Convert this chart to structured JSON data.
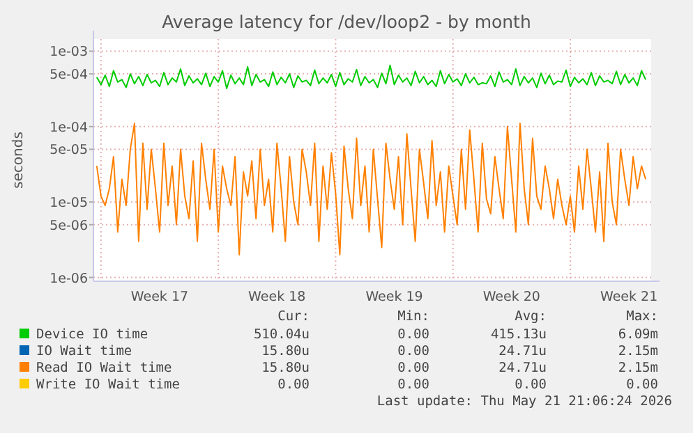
{
  "chart_data": {
    "type": "line",
    "title": "Average latency for /dev/loop2 - by month",
    "ylabel": "seconds",
    "log": true,
    "grid": true,
    "legend": "bottom",
    "marker": "none",
    "line_style": "solid",
    "categories": [
      null,
      null,
      null,
      null,
      null,
      null,
      null,
      null,
      null,
      null,
      null,
      null,
      null,
      null,
      null,
      "Week 17",
      null,
      null,
      null,
      null,
      null,
      null,
      null,
      null,
      null,
      null,
      null,
      null,
      null,
      null,
      null,
      null,
      null,
      null,
      null,
      null,
      null,
      null,
      null,
      null,
      null,
      null,
      null,
      "Week 18",
      null,
      null,
      null,
      null,
      null,
      null,
      null,
      null,
      null,
      null,
      null,
      null,
      null,
      null,
      null,
      null,
      null,
      null,
      null,
      null,
      null,
      null,
      null,
      null,
      null,
      null,
      null,
      "Week 19",
      null,
      null,
      null,
      null,
      null,
      null,
      null,
      null,
      null,
      null,
      null,
      null,
      null,
      null,
      null,
      null,
      null,
      null,
      null,
      null,
      null,
      null,
      null,
      null,
      null,
      null,
      null,
      "Week 20",
      null,
      null,
      null,
      null,
      null,
      null,
      null,
      null,
      null,
      null,
      null,
      null,
      null,
      null,
      null,
      null,
      null,
      null,
      null,
      null,
      null,
      null,
      null,
      null,
      null,
      null,
      null,
      "Week 21",
      null,
      null,
      null,
      null
    ],
    "ylim": [
      8.9e-07,
      0.00145
    ],
    "yticks": [
      {
        "value": 1e-06,
        "label": "1e-06"
      },
      {
        "value": 5e-06,
        "label": "5e-06"
      },
      {
        "value": 1e-05,
        "label": "1e-05"
      },
      {
        "value": 5e-05,
        "label": "5e-05"
      },
      {
        "value": 0.0001,
        "label": "1e-04"
      },
      {
        "value": 0.0005,
        "label": "5e-04"
      },
      {
        "value": 0.001,
        "label": "1e-03"
      }
    ],
    "series": [
      {
        "name": "Device IO time",
        "color": "#00cc00",
        "values": [
          0.00045,
          0.00036,
          0.00048,
          0.00034,
          0.00055,
          0.00039,
          0.00042,
          0.00033,
          0.0005,
          0.00037,
          0.00046,
          0.00035,
          0.00049,
          0.00038,
          0.00041,
          0.00034,
          0.00052,
          0.00036,
          0.00044,
          0.00039,
          0.00058,
          0.00035,
          0.00047,
          0.00038,
          0.00043,
          0.00036,
          0.00051,
          0.00034,
          0.00046,
          0.00039,
          0.00055,
          0.00032,
          0.00048,
          0.00037,
          0.00044,
          0.00036,
          0.00062,
          0.00035,
          0.00049,
          0.00039,
          0.00042,
          0.00034,
          0.00053,
          0.00036,
          0.00045,
          0.00038,
          0.0005,
          0.00033,
          0.00047,
          0.00039,
          0.00041,
          0.00035,
          0.00056,
          0.00037,
          0.00044,
          0.00038,
          0.00049,
          0.00034,
          0.00052,
          0.00036,
          0.00043,
          0.00039,
          0.00057,
          0.00035,
          0.00046,
          0.00038,
          0.00042,
          0.00033,
          0.00051,
          0.00037,
          0.00065,
          0.00036,
          0.00048,
          0.00039,
          0.00044,
          0.00035,
          0.00054,
          0.00038,
          0.00046,
          0.00036,
          0.00041,
          0.00034,
          0.00055,
          0.00037,
          0.00049,
          0.00039,
          0.00043,
          0.00035,
          0.0005,
          0.00038,
          0.00045,
          0.00036,
          0.00038,
          0.00037,
          0.00047,
          0.00034,
          0.00053,
          0.00039,
          0.00042,
          0.00036,
          0.00058,
          0.00035,
          0.00046,
          0.00038,
          0.00044,
          0.00033,
          0.00051,
          0.00037,
          0.00048,
          0.00036,
          0.0004,
          0.00039,
          0.00056,
          0.00034,
          0.00045,
          0.00038,
          0.00043,
          0.00036,
          0.00052,
          0.00035,
          0.00047,
          0.00039,
          0.00041,
          0.00037,
          0.00054,
          0.00036,
          0.00049,
          0.00038,
          0.00044,
          0.00035,
          0.00055,
          0.00042
        ]
      },
      {
        "name": "IO Wait time",
        "color": "#0066b3",
        "values": [
          null,
          null,
          null,
          null,
          null,
          null,
          null,
          null,
          null,
          null,
          null,
          null,
          null,
          null,
          null,
          null,
          null,
          null,
          null,
          null,
          null,
          null,
          null,
          null,
          null,
          null,
          null,
          null,
          null,
          null,
          null,
          null,
          null,
          null,
          null,
          null,
          null,
          null,
          null,
          null,
          null,
          null,
          null,
          null,
          null,
          null,
          null,
          null,
          null,
          null,
          null,
          null,
          null,
          null,
          null,
          null,
          null,
          null,
          null,
          null,
          null,
          null,
          null,
          null,
          null,
          null,
          null,
          null,
          null,
          null,
          null,
          null,
          null,
          null,
          null,
          null,
          null,
          null,
          null,
          null,
          null,
          null,
          null,
          null,
          null,
          null,
          null,
          null,
          null,
          null,
          null,
          null,
          null,
          null,
          null,
          null,
          null,
          null,
          null,
          null,
          null,
          null,
          null,
          null,
          null,
          null,
          null,
          null,
          null,
          null,
          null,
          null,
          null,
          null,
          null,
          null,
          null,
          null,
          null,
          null,
          null,
          null,
          null,
          null,
          null,
          null,
          null,
          null,
          null,
          null,
          null,
          null
        ]
      },
      {
        "name": "Read IO Wait time",
        "color": "#ff8000",
        "values": [
          3e-05,
          1.2e-05,
          9e-06,
          1.5e-05,
          4e-05,
          4e-06,
          2e-05,
          9e-06,
          5e-05,
          0.00011,
          3e-06,
          6e-05,
          8e-06,
          5e-05,
          1.5e-05,
          4e-06,
          6e-05,
          9e-06,
          3e-05,
          5e-06,
          5e-05,
          1.2e-05,
          6e-06,
          3.5e-05,
          3e-06,
          6e-05,
          2e-05,
          8e-06,
          5e-05,
          4e-06,
          3e-05,
          1.5e-05,
          9e-06,
          4e-05,
          2e-06,
          2.5e-05,
          1.2e-05,
          3.5e-05,
          6e-06,
          5e-05,
          9e-06,
          2e-05,
          4e-06,
          6e-05,
          1.5e-05,
          3e-06,
          4e-05,
          1e-05,
          5e-06,
          5e-05,
          2.5e-05,
          9e-06,
          6e-05,
          3e-06,
          3e-05,
          8e-06,
          4.5e-05,
          1.3e-05,
          2e-06,
          5.5e-05,
          1.5e-05,
          6e-06,
          7e-05,
          9e-06,
          3e-05,
          4e-06,
          5e-05,
          1.1e-05,
          2.5e-06,
          6e-05,
          2e-05,
          8e-06,
          4e-05,
          5e-06,
          8e-05,
          1.5e-05,
          3e-06,
          5e-05,
          1.8e-05,
          6e-06,
          6.5e-05,
          9e-06,
          2.5e-05,
          4e-06,
          3e-05,
          1.2e-05,
          5e-06,
          5e-05,
          8e-06,
          9e-05,
          2e-05,
          4e-06,
          6e-05,
          1.1e-05,
          7e-06,
          4e-05,
          1.5e-05,
          6e-06,
          0.0001,
          2e-05,
          4e-06,
          0.00011,
          1.5e-05,
          5e-06,
          7e-05,
          1.2e-05,
          8e-06,
          3e-05,
          1.5e-05,
          6e-06,
          2e-05,
          9e-06,
          5e-06,
          1.2e-05,
          4e-06,
          3e-05,
          8e-06,
          5e-05,
          1.5e-05,
          4e-06,
          2.5e-05,
          3e-06,
          6e-05,
          1e-05,
          5e-06,
          5e-05,
          2e-05,
          9e-06,
          4e-05,
          1.5e-05,
          3e-05,
          2e-05
        ]
      },
      {
        "name": "Write IO Wait time",
        "color": "#ffcc00",
        "values": [
          null,
          null,
          null,
          null,
          null,
          null,
          null,
          null,
          null,
          null,
          null,
          null,
          null,
          null,
          null,
          null,
          null,
          null,
          null,
          null,
          null,
          null,
          null,
          null,
          null,
          null,
          null,
          null,
          null,
          null,
          null,
          null,
          null,
          null,
          null,
          null,
          null,
          null,
          null,
          null,
          null,
          null,
          null,
          null,
          null,
          null,
          null,
          null,
          null,
          null,
          null,
          null,
          null,
          null,
          null,
          null,
          null,
          null,
          null,
          null,
          null,
          null,
          null,
          null,
          null,
          null,
          null,
          null,
          null,
          null,
          null,
          null,
          null,
          null,
          null,
          null,
          null,
          null,
          null,
          null,
          null,
          null,
          null,
          null,
          null,
          null,
          null,
          null,
          null,
          null,
          null,
          null,
          null,
          null,
          null,
          null,
          null,
          null,
          null,
          null,
          null,
          null,
          null,
          null,
          null,
          null,
          null,
          null,
          null,
          null,
          null,
          null,
          null,
          null,
          null,
          null,
          null,
          null,
          null,
          null,
          null,
          null,
          null,
          null,
          null,
          null,
          null,
          null,
          null,
          null,
          null,
          null
        ]
      }
    ],
    "annotations": [
      "Cur:",
      "Min:",
      "Avg:",
      "Max:",
      "510.04u",
      "0.00",
      "415.13u",
      "6.09m",
      "15.80u",
      "0.00",
      "24.71u",
      "2.15m",
      "15.80u",
      "0.00",
      "24.71u",
      "2.15m",
      "0.00",
      "0.00",
      "0.00",
      "0.00",
      "Last update: Thu May 21 21:06:24 2026"
    ]
  }
}
